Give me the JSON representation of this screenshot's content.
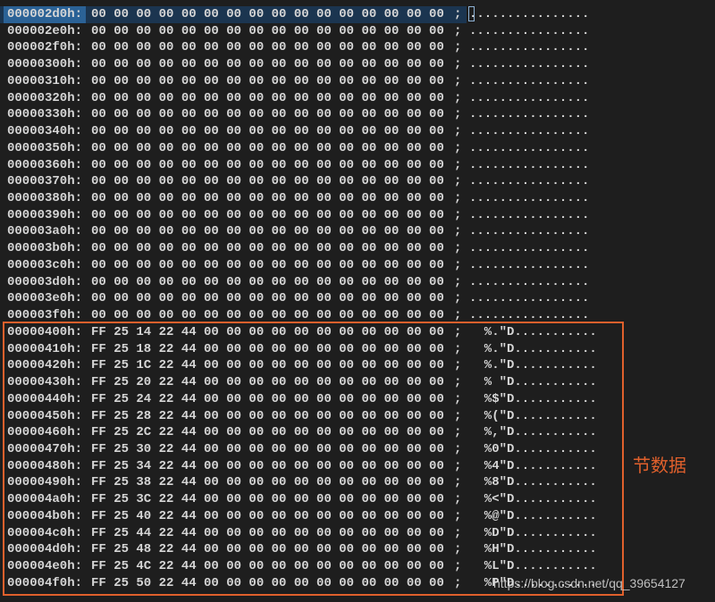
{
  "rows": [
    {
      "address": "000002d0h:",
      "hex": "00 00 00 00 00 00 00 00 00 00 00 00 00 00 00 00",
      "ascii": "................"
    },
    {
      "address": "000002e0h:",
      "hex": "00 00 00 00 00 00 00 00 00 00 00 00 00 00 00 00",
      "ascii": "................"
    },
    {
      "address": "000002f0h:",
      "hex": "00 00 00 00 00 00 00 00 00 00 00 00 00 00 00 00",
      "ascii": "................"
    },
    {
      "address": "00000300h:",
      "hex": "00 00 00 00 00 00 00 00 00 00 00 00 00 00 00 00",
      "ascii": "................"
    },
    {
      "address": "00000310h:",
      "hex": "00 00 00 00 00 00 00 00 00 00 00 00 00 00 00 00",
      "ascii": "................"
    },
    {
      "address": "00000320h:",
      "hex": "00 00 00 00 00 00 00 00 00 00 00 00 00 00 00 00",
      "ascii": "................"
    },
    {
      "address": "00000330h:",
      "hex": "00 00 00 00 00 00 00 00 00 00 00 00 00 00 00 00",
      "ascii": "................"
    },
    {
      "address": "00000340h:",
      "hex": "00 00 00 00 00 00 00 00 00 00 00 00 00 00 00 00",
      "ascii": "................"
    },
    {
      "address": "00000350h:",
      "hex": "00 00 00 00 00 00 00 00 00 00 00 00 00 00 00 00",
      "ascii": "................"
    },
    {
      "address": "00000360h:",
      "hex": "00 00 00 00 00 00 00 00 00 00 00 00 00 00 00 00",
      "ascii": "................"
    },
    {
      "address": "00000370h:",
      "hex": "00 00 00 00 00 00 00 00 00 00 00 00 00 00 00 00",
      "ascii": "................"
    },
    {
      "address": "00000380h:",
      "hex": "00 00 00 00 00 00 00 00 00 00 00 00 00 00 00 00",
      "ascii": "................"
    },
    {
      "address": "00000390h:",
      "hex": "00 00 00 00 00 00 00 00 00 00 00 00 00 00 00 00",
      "ascii": "................"
    },
    {
      "address": "000003a0h:",
      "hex": "00 00 00 00 00 00 00 00 00 00 00 00 00 00 00 00",
      "ascii": "................"
    },
    {
      "address": "000003b0h:",
      "hex": "00 00 00 00 00 00 00 00 00 00 00 00 00 00 00 00",
      "ascii": "................"
    },
    {
      "address": "000003c0h:",
      "hex": "00 00 00 00 00 00 00 00 00 00 00 00 00 00 00 00",
      "ascii": "................"
    },
    {
      "address": "000003d0h:",
      "hex": "00 00 00 00 00 00 00 00 00 00 00 00 00 00 00 00",
      "ascii": "................"
    },
    {
      "address": "000003e0h:",
      "hex": "00 00 00 00 00 00 00 00 00 00 00 00 00 00 00 00",
      "ascii": "................"
    },
    {
      "address": "000003f0h:",
      "hex": "00 00 00 00 00 00 00 00 00 00 00 00 00 00 00 00",
      "ascii": "................"
    },
    {
      "address": "00000400h:",
      "hex": "FF 25 14 22 44 00 00 00 00 00 00 00 00 00 00 00",
      "ascii": "  %.\"D..........."
    },
    {
      "address": "00000410h:",
      "hex": "FF 25 18 22 44 00 00 00 00 00 00 00 00 00 00 00",
      "ascii": "  %.\"D..........."
    },
    {
      "address": "00000420h:",
      "hex": "FF 25 1C 22 44 00 00 00 00 00 00 00 00 00 00 00",
      "ascii": "  %.\"D..........."
    },
    {
      "address": "00000430h:",
      "hex": "FF 25 20 22 44 00 00 00 00 00 00 00 00 00 00 00",
      "ascii": "  % \"D..........."
    },
    {
      "address": "00000440h:",
      "hex": "FF 25 24 22 44 00 00 00 00 00 00 00 00 00 00 00",
      "ascii": "  %$\"D..........."
    },
    {
      "address": "00000450h:",
      "hex": "FF 25 28 22 44 00 00 00 00 00 00 00 00 00 00 00",
      "ascii": "  %(\"D..........."
    },
    {
      "address": "00000460h:",
      "hex": "FF 25 2C 22 44 00 00 00 00 00 00 00 00 00 00 00",
      "ascii": "  %,\"D..........."
    },
    {
      "address": "00000470h:",
      "hex": "FF 25 30 22 44 00 00 00 00 00 00 00 00 00 00 00",
      "ascii": "  %0\"D..........."
    },
    {
      "address": "00000480h:",
      "hex": "FF 25 34 22 44 00 00 00 00 00 00 00 00 00 00 00",
      "ascii": "  %4\"D..........."
    },
    {
      "address": "00000490h:",
      "hex": "FF 25 38 22 44 00 00 00 00 00 00 00 00 00 00 00",
      "ascii": "  %8\"D..........."
    },
    {
      "address": "000004a0h:",
      "hex": "FF 25 3C 22 44 00 00 00 00 00 00 00 00 00 00 00",
      "ascii": "  %<\"D..........."
    },
    {
      "address": "000004b0h:",
      "hex": "FF 25 40 22 44 00 00 00 00 00 00 00 00 00 00 00",
      "ascii": "  %@\"D..........."
    },
    {
      "address": "000004c0h:",
      "hex": "FF 25 44 22 44 00 00 00 00 00 00 00 00 00 00 00",
      "ascii": "  %D\"D..........."
    },
    {
      "address": "000004d0h:",
      "hex": "FF 25 48 22 44 00 00 00 00 00 00 00 00 00 00 00",
      "ascii": "  %H\"D..........."
    },
    {
      "address": "000004e0h:",
      "hex": "FF 25 4C 22 44 00 00 00 00 00 00 00 00 00 00 00",
      "ascii": "  %L\"D..........."
    },
    {
      "address": "000004f0h:",
      "hex": "FF 25 50 22 44 00 00 00 00 00 00 00 00 00 00 00",
      "ascii": "  %P\"D..........."
    }
  ],
  "separator": ";",
  "annotation": "节数据",
  "watermark": "https://blog.csdn.net/qq_39654127"
}
